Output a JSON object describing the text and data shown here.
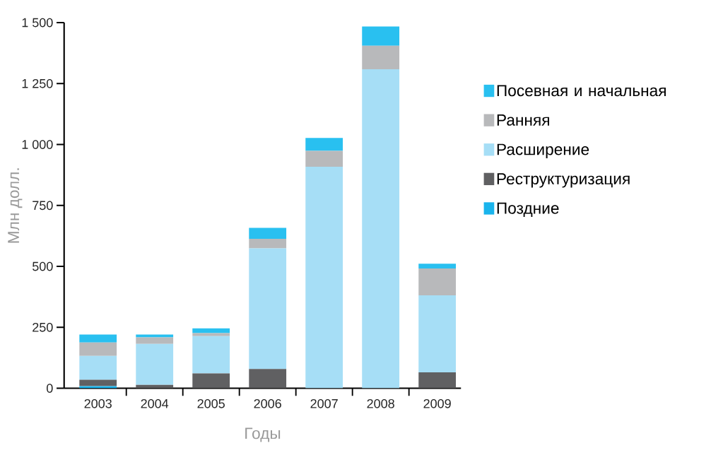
{
  "chart_data": {
    "type": "bar",
    "stacked": true,
    "xlabel": "Годы",
    "ylabel": "Млн долл.",
    "categories": [
      "2003",
      "2004",
      "2005",
      "2006",
      "2007",
      "2008",
      "2009"
    ],
    "ylim": [
      0,
      1500
    ],
    "yticks": [
      0,
      250,
      500,
      750,
      {
        "value": 1000,
        "label": "1 000"
      },
      {
        "value": 1250,
        "label": "1 250"
      },
      {
        "value": 1500,
        "label": "1 500"
      }
    ],
    "legend": "right",
    "grid": false,
    "series": [
      {
        "name": "Поздние",
        "color": "#1ab4ec",
        "values": [
          9,
          0,
          0,
          0,
          0,
          0,
          0
        ]
      },
      {
        "name": "Реструктуризация",
        "color": "#606062",
        "values": [
          26,
          14,
          61,
          79,
          0,
          0,
          65
        ]
      },
      {
        "name": "Расширение",
        "color": "#a6def6",
        "values": [
          98,
          168,
          153,
          495,
          909,
          1309,
          316
        ]
      },
      {
        "name": "Ранняя",
        "color": "#b8b9bb",
        "values": [
          55,
          27,
          12,
          39,
          65,
          96,
          110
        ]
      },
      {
        "name": "Посевная и начальная",
        "color": "#29c0f0",
        "values": [
          32,
          11,
          20,
          45,
          53,
          79,
          20
        ]
      }
    ]
  }
}
